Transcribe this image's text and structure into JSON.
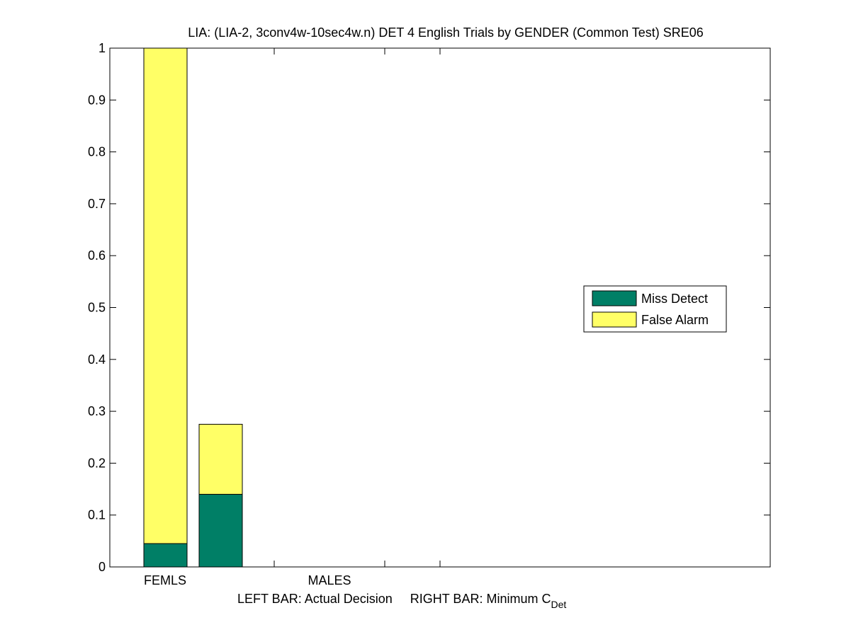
{
  "chart_data": {
    "type": "bar",
    "stacked": true,
    "title": "LIA: (LIA-2, 3conv4w-10sec4w.n) DET 4 English Trials by GENDER (Common Test) SRE06",
    "xlabel_main": "LEFT BAR: Actual Decision     RIGHT BAR: Minimum C",
    "xlabel_sub": "Det",
    "ylim": [
      0,
      1
    ],
    "y_ticks": [
      0,
      0.1,
      0.2,
      0.3,
      0.4,
      0.5,
      0.6,
      0.7,
      0.8,
      0.9,
      1
    ],
    "y_tick_labels": [
      "0",
      "0.1",
      "0.2",
      "0.3",
      "0.4",
      "0.5",
      "0.6",
      "0.7",
      "0.8",
      "0.9",
      "1"
    ],
    "categories": [
      "FEMLS",
      "MALES"
    ],
    "legend_position": "middle-right",
    "bars": [
      {
        "category": "FEMLS",
        "role": "Actual Decision",
        "miss_detect": 0.045,
        "false_alarm": 0.955
      },
      {
        "category": "FEMLS",
        "role": "Minimum C_Det",
        "miss_detect": 0.14,
        "false_alarm": 0.135
      }
    ],
    "series": [
      {
        "name": "Miss Detect",
        "color": "#007f66"
      },
      {
        "name": "False Alarm",
        "color": "#ffff66"
      }
    ]
  }
}
